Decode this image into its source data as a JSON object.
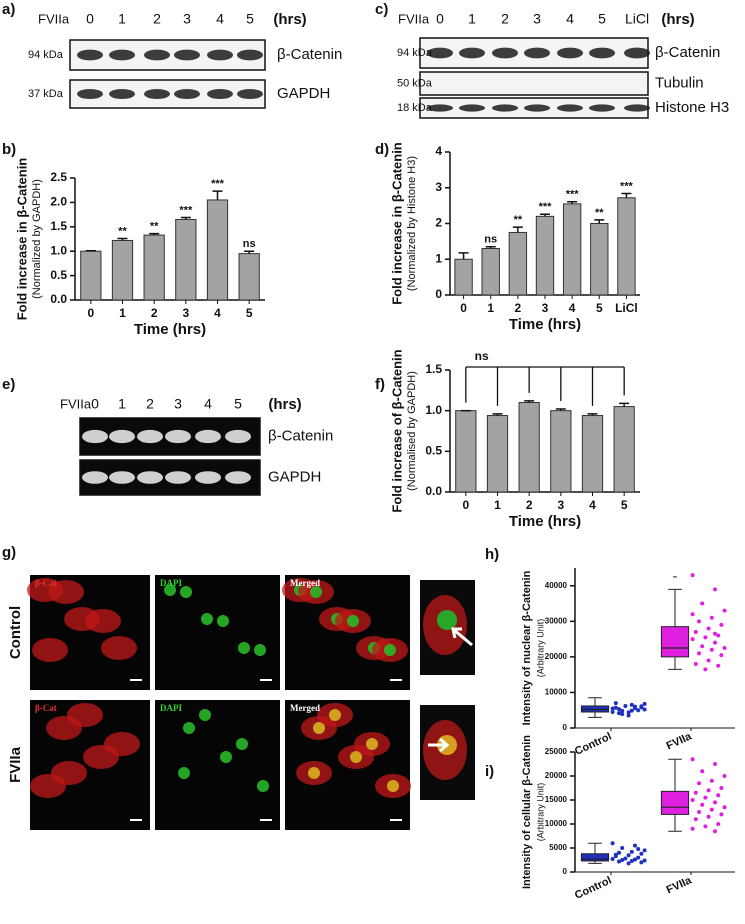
{
  "blots": [
    {
      "panel": "a)",
      "treatment": "FVIIa",
      "lanes": [
        "0",
        "1",
        "2",
        "3",
        "4",
        "5"
      ],
      "unit": "(hrs)",
      "rows": [
        {
          "size": "94 kDa",
          "protein": "β-Catenin"
        },
        {
          "size": "37 kDa",
          "protein": "GAPDH"
        }
      ]
    },
    {
      "panel": "c)",
      "treatment": "FVIIa",
      "lanes": [
        "0",
        "1",
        "2",
        "3",
        "4",
        "5",
        "LiCl"
      ],
      "unit": "(hrs)",
      "rows": [
        {
          "size": "94 kDa",
          "protein": "β-Catenin"
        },
        {
          "size": "50 kDa",
          "protein": "Tubulin"
        },
        {
          "size": "18 kDa",
          "protein": "Histone H3"
        }
      ]
    },
    {
      "panel": "e)",
      "treatment": "FVIIa",
      "lanes": [
        "0",
        "1",
        "2",
        "3",
        "4",
        "5"
      ],
      "unit": "(hrs)",
      "rows": [
        {
          "protein": "β-Catenin"
        },
        {
          "protein": "GAPDH"
        }
      ]
    }
  ],
  "micrographs": {
    "panel": "g)",
    "channels": [
      "β-Cat",
      "DAPI",
      "Merged"
    ],
    "conditions": [
      "Control",
      "FVIIa"
    ]
  },
  "chart_data": [
    {
      "type": "bar",
      "panel": "b)",
      "ylabel": "Fold increase in β-Catenin",
      "ylabel_note": "(Normalized by GAPDH)",
      "xlabel": "Time (hrs)",
      "categories": [
        "0",
        "1",
        "2",
        "3",
        "4",
        "5"
      ],
      "values": [
        1.0,
        1.22,
        1.33,
        1.65,
        2.05,
        0.95
      ],
      "errors": [
        0.01,
        0.04,
        0.03,
        0.04,
        0.18,
        0.05
      ],
      "annotations": [
        null,
        "**",
        "**",
        "***",
        "***",
        "ns"
      ],
      "color": "#a3a3a3",
      "ylim": [
        0,
        2.5
      ],
      "yticks": [
        {
          "value": 0,
          "label": "0.0"
        },
        0.5,
        {
          "value": 1,
          "label": "1.0"
        },
        1.5,
        {
          "value": 2,
          "label": "2.0"
        },
        2.5
      ]
    },
    {
      "type": "bar",
      "panel": "d)",
      "ylabel": "Fold increase in β-Catenin",
      "ylabel_note": "(Normalized by Histone H3)",
      "xlabel": "Time (hrs)",
      "categories": [
        "0",
        "1",
        "2",
        "3",
        "4",
        "5",
        "LiCl"
      ],
      "values": [
        1.0,
        1.3,
        1.75,
        2.2,
        2.55,
        2.0,
        2.72
      ],
      "errors": [
        0.18,
        0.05,
        0.15,
        0.06,
        0.06,
        0.1,
        0.12
      ],
      "annotations": [
        null,
        "ns",
        "**",
        "***",
        "***",
        "**",
        "***"
      ],
      "color": "#a3a3a3",
      "ylim": [
        0,
        4
      ],
      "yticks": [
        0,
        1,
        2,
        3,
        4
      ]
    },
    {
      "type": "bar",
      "panel": "f)",
      "ylabel": "Fold increase of β-Catenin",
      "ylabel_note": "(Normalised by GAPDH)",
      "xlabel": "Time (hrs)",
      "categories": [
        "0",
        "1",
        "2",
        "3",
        "4",
        "5"
      ],
      "values": [
        1.0,
        0.94,
        1.1,
        1.0,
        0.94,
        1.05
      ],
      "errors": [
        0,
        0.02,
        0.02,
        0.02,
        0.02,
        0.04
      ],
      "bracket_label": "ns",
      "color": "#a3a3a3",
      "ylim": [
        0,
        1.5
      ],
      "yticks": [
        {
          "value": 0,
          "label": "0.0"
        },
        0.5,
        {
          "value": 1,
          "label": "1.0"
        },
        1.5
      ]
    },
    {
      "type": "box",
      "panel": "h)",
      "ylabel": "Intensity of nuclear β-Catenin",
      "ylabel_note": "(Arbitrary Unit)",
      "ylim": [
        0,
        45000
      ],
      "yticks": [
        0,
        10000,
        20000,
        30000,
        40000
      ],
      "series": [
        {
          "name": "Control",
          "color": "#1f2fbf",
          "q1": 4500,
          "median": 5200,
          "q3": 6200,
          "whisker_low": 3000,
          "whisker_high": 8500,
          "points": [
            5500,
            6000,
            4800,
            5200,
            6500,
            4200,
            5800,
            3500,
            7000,
            5000,
            6200,
            4500,
            5600,
            3900,
            6800,
            4900,
            5300,
            6100,
            4400,
            5700
          ]
        },
        {
          "name": "FVIIa",
          "color": "#e020e0",
          "q1": 20000,
          "median": 22500,
          "q3": 28500,
          "whisker_low": 16500,
          "whisker_high": 39000,
          "outliers": [
            42500
          ],
          "points": [
            43000,
            39000,
            35000,
            33000,
            31000,
            30000,
            29000,
            28000,
            27000,
            26000,
            25500,
            25000,
            24000,
            23000,
            22500,
            22000,
            21000,
            20500,
            19000,
            18000,
            17500,
            16500,
            32000,
            26500
          ]
        }
      ]
    },
    {
      "type": "box",
      "panel": "i)",
      "ylabel": "Intensity of cellular β-Catenin",
      "ylabel_note": "(Arbitrary Unit)",
      "ylim": [
        0,
        25000
      ],
      "yticks": [
        0,
        5000,
        10000,
        15000,
        20000,
        25000
      ],
      "series": [
        {
          "name": "Control",
          "color": "#1f2fbf",
          "q1": 2300,
          "median": 2700,
          "q3": 3800,
          "whisker_low": 1800,
          "whisker_high": 6000,
          "points": [
            6000,
            5500,
            5000,
            4500,
            4200,
            4000,
            3800,
            3500,
            3300,
            3000,
            2800,
            2700,
            2600,
            2500,
            2400,
            2300,
            2200,
            2000,
            1800,
            3600,
            4800
          ]
        },
        {
          "name": "FVIIa",
          "color": "#e020e0",
          "q1": 12000,
          "median": 13500,
          "q3": 16800,
          "whisker_low": 8500,
          "whisker_high": 23500,
          "points": [
            23500,
            22500,
            21000,
            20000,
            19000,
            18500,
            17500,
            17000,
            16500,
            16000,
            15500,
            15000,
            14500,
            14000,
            13500,
            13000,
            12500,
            12000,
            11500,
            11000,
            10000,
            9500,
            9000,
            8500
          ]
        }
      ]
    }
  ]
}
